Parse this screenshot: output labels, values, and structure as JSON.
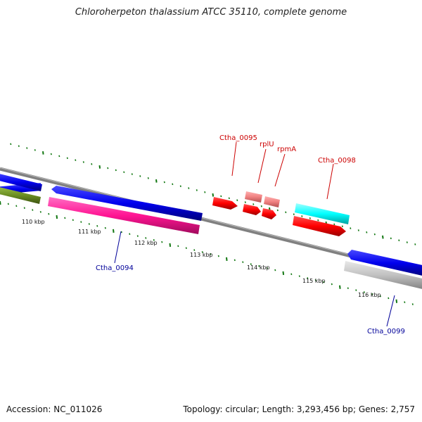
{
  "title": "Chloroherpeton thalassium ATCC 35110, complete genome",
  "footer": {
    "accession": "Accession: NC_011026",
    "topology": "Topology: circular; Length: 3,293,456 bp; Genes: 2,757"
  },
  "ruler": {
    "labels": [
      "110 kbp",
      "111 kbp",
      "112 kbp",
      "113 kbp",
      "114 kbp",
      "115 kbp",
      "116 kbp"
    ]
  },
  "genes": [
    {
      "name": "Ctha_0094",
      "color": "#000099"
    },
    {
      "name": "Ctha_0095",
      "color": "#cc0000"
    },
    {
      "name": "rplU",
      "color": "#cc0000"
    },
    {
      "name": "rpmA",
      "color": "#cc0000"
    },
    {
      "name": "Ctha_0098",
      "color": "#cc0000"
    },
    {
      "name": "Ctha_0099",
      "color": "#000099"
    }
  ],
  "colors": {
    "backbone": "#808080",
    "ruler_ticks": "#117711",
    "blue_feature": "#0000ee",
    "magenta_feature": "#ff1493",
    "red_feature": "#ff0000",
    "pink_feature": "#f08080",
    "cyan_feature": "#00ffff",
    "olive_feature": "#6b8e23",
    "grey_feature": "#c0c0c0"
  }
}
